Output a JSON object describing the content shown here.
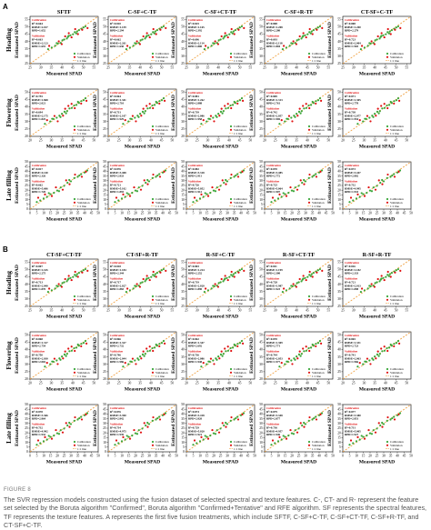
{
  "figure": {
    "panel_a_label": "A",
    "panel_b_label": "B",
    "caption_label": "FIGURE 8",
    "caption_text": "The SVR regression models constructed using the fusion dataset of selected spectral and texture features. C-, CT- and R- represent the feature set selected by the Boruta algorithm \"Confirmed\", Boruta algorithm \"Confirmed+Tentative\" and RFE algorithm. SF represents the spectral features, TF represents the texture features. A represents the first five fusion treatments, which include SFTF, C-SF+C-TF, C-SF+CT-TF, C-SF+R-TF, and CT-SF+C-TF."
  },
  "panels": {
    "A": {
      "columns": [
        "SFTF",
        "C-SF+C-TF",
        "C-SF+CT-TF",
        "C-SF+R-TF",
        "CT-SF+C-TF"
      ],
      "rows": [
        "Heading",
        "Flowering",
        "Late filling"
      ]
    },
    "B": {
      "columns": [
        "CT-SF+CT-TF",
        "CT-SF+R-TF",
        "R-SF+C-TF",
        "R-SF+CT-TF",
        "R-SF+R-TF"
      ],
      "rows": [
        "Heading",
        "Flowering",
        "Late filling"
      ]
    }
  },
  "axis_text": {
    "xlabel": "Measured SPAD",
    "ylabel": "Estimated SPAD",
    "calibration_header": "Calibration",
    "validation_header": "Validation",
    "legend": [
      "Calibration",
      "Validation",
      "1:1 line"
    ]
  },
  "chart_data": {
    "type": "scatter",
    "xlabel": "Measured SPAD",
    "ylabel": "Estimated SPAD",
    "legend_placement": "bottom-right",
    "series_colors": {
      "calibration": "#3aa63a",
      "validation": "#e01010",
      "one_to_one": "#f0a040"
    },
    "rows": {
      "Heading": {
        "xticks": [
          25,
          30,
          35,
          40,
          45,
          50,
          55
        ],
        "xlim": [
          25,
          57
        ],
        "yticks": [
          25,
          30,
          35,
          40,
          45,
          50,
          55
        ],
        "ylim": [
          25,
          57
        ]
      },
      "Flowering": {
        "xticks": [
          20,
          25,
          30,
          35,
          40,
          45,
          50
        ],
        "xlim": [
          20,
          52
        ],
        "yticks": [
          20,
          25,
          30,
          35,
          40,
          45,
          50
        ],
        "ylim": [
          20,
          52
        ]
      },
      "Late filling": {
        "xticks": [
          0,
          5,
          10,
          15,
          20,
          25,
          30,
          35,
          40,
          45,
          50
        ],
        "xlim": [
          0,
          50
        ],
        "yticks": [
          0,
          5,
          10,
          15,
          20,
          25,
          30,
          35,
          40,
          45,
          50
        ],
        "ylim": [
          0,
          50
        ]
      }
    },
    "metrics": {
      "A": [
        [
          {
            "cal": [
              "R²=0.664",
              "RMSE=2.017",
              "RPD=1.652"
            ],
            "val": [
              "R²=0.663",
              "RMSE=2.123",
              "RPD=1.691"
            ]
          },
          {
            "cal": [
              "R²=0.810",
              "RMSE=1.159",
              "RPD=2.294"
            ],
            "val": [
              "R²=0.662",
              "RMSE=2.261",
              "RPD=1.630"
            ]
          },
          {
            "cal": [
              "R²=0.825",
              "RMSE=1.165",
              "RPD=2.392"
            ],
            "val": [
              "R²=0.696",
              "RMSE=2.114",
              "RPD=1.800"
            ]
          },
          {
            "cal": [
              "R²=0.808",
              "RMSE=1.208",
              "RPD=2.280"
            ],
            "val": [
              "R²=0.693",
              "RMSE=2.118",
              "RPD=1.804"
            ]
          },
          {
            "cal": [
              "R²=0.808",
              "RMSE=1.200",
              "RPD=2.279"
            ],
            "val": [
              "R²=0.723",
              "RMSE=2.004",
              "RPD=1.903"
            ]
          }
        ],
        [
          {
            "cal": [
              "R²=0.755",
              "RMSE=1.868",
              "RPD=2.021"
            ],
            "val": [
              "R²=0.694",
              "RMSE=2.175",
              "RPD=1.825"
            ]
          },
          {
            "cal": [
              "R²=0.864",
              "RMSE=1.341",
              "RPD=2.710"
            ],
            "val": [
              "R²=0.731",
              "RMSE=2.107",
              "RPD=1.929"
            ]
          },
          {
            "cal": [
              "R²=0.881",
              "RMSE=1.262",
              "RPD=2.888"
            ],
            "val": [
              "R²=0.739",
              "RMSE=2.086",
              "RPD=1.958"
            ]
          },
          {
            "cal": [
              "R²=0.869",
              "RMSE=1.313",
              "RPD=2.761"
            ],
            "val": [
              "R²=0.742",
              "RMSE=2.057",
              "RPD=1.969"
            ]
          },
          {
            "cal": [
              "R²=0.871",
              "RMSE=1.305",
              "RPD=2.778"
            ],
            "val": [
              "R²=0.738",
              "RMSE=2.077",
              "RPD=1.954"
            ]
          }
        ],
        [
          {
            "cal": [
              "R²=0.817",
              "RMSE=4.140",
              "RPD=2.326"
            ],
            "val": [
              "R²=0.662",
              "RMSE=5.606",
              "RPD=1.720"
            ]
          },
          {
            "cal": [
              "R²=0.876",
              "RMSE=3.408",
              "RPD=2.833"
            ],
            "val": [
              "R²=0.721",
              "RMSE=5.102",
              "RPD=1.893"
            ]
          },
          {
            "cal": [
              "R²=0.882",
              "RMSE=3.318",
              "RPD=2.911"
            ],
            "val": [
              "R²=0.726",
              "RMSE=5.052",
              "RPD=1.912"
            ]
          },
          {
            "cal": [
              "R²=0.870",
              "RMSE=3.485",
              "RPD=2.772"
            ],
            "val": [
              "R²=0.725",
              "RMSE=5.064",
              "RPD=1.907"
            ]
          },
          {
            "cal": [
              "R²=0.873",
              "RMSE=3.447",
              "RPD=2.802"
            ],
            "val": [
              "R²=0.732",
              "RMSE=4.995",
              "RPD=1.933"
            ]
          }
        ]
      ],
      "B": [
        [
          {
            "cal": [
              "R²=0.807",
              "RMSE=1.165",
              "RPD=2.275"
            ],
            "val": [
              "R²=0.713",
              "RMSE=2.040",
              "RPD=1.870"
            ]
          },
          {
            "cal": [
              "R²=0.818",
              "RMSE=1.184",
              "RPD=2.344"
            ],
            "val": [
              "R²=0.717",
              "RMSE=2.027",
              "RPD=1.883"
            ]
          },
          {
            "cal": [
              "R²=0.803",
              "RMSE=1.224",
              "RPD=2.252"
            ],
            "val": [
              "R²=0.719",
              "RMSE=2.020",
              "RPD=1.890"
            ]
          },
          {
            "cal": [
              "R²=0.811",
              "RMSE=1.199",
              "RPD=2.300"
            ],
            "val": [
              "R²=0.728",
              "RMSE=1.987",
              "RPD=1.923"
            ]
          },
          {
            "cal": [
              "R²=0.816",
              "RMSE=1.182",
              "RPD=2.333"
            ],
            "val": [
              "R²=0.721",
              "RMSE=2.013",
              "RPD=1.898"
            ]
          }
        ],
        [
          {
            "cal": [
              "R²=0.868",
              "RMSE=1.317",
              "RPD=2.754"
            ],
            "val": [
              "R²=0.750",
              "RMSE=2.030",
              "RPD=2.002"
            ]
          },
          {
            "cal": [
              "R²=0.866",
              "RMSE=1.327",
              "RPD=2.732"
            ],
            "val": [
              "R²=0.746",
              "RMSE=2.044",
              "RPD=1.986"
            ]
          },
          {
            "cal": [
              "R²=0.862",
              "RMSE=1.347",
              "RPD=2.692"
            ],
            "val": [
              "R²=0.736",
              "RMSE=2.086",
              "RPD=1.948"
            ]
          },
          {
            "cal": [
              "R²=0.870",
              "RMSE=1.309",
              "RPD=2.771"
            ],
            "val": [
              "R²=0.744",
              "RMSE=2.053",
              "RPD=1.977"
            ]
          },
          {
            "cal": [
              "R²=0.865",
              "RMSE=1.331",
              "RPD=2.723"
            ],
            "val": [
              "R²=0.741",
              "RMSE=2.063",
              "RPD=1.966"
            ]
          }
        ],
        [
          {
            "cal": [
              "R²=0.878",
              "RMSE=3.366",
              "RPD=2.864"
            ],
            "val": [
              "R²=0.732",
              "RMSE=4.992",
              "RPD=1.932"
            ]
          },
          {
            "cal": [
              "R²=0.876",
              "RMSE=3.390",
              "RPD=2.842"
            ],
            "val": [
              "R²=0.734",
              "RMSE=4.975",
              "RPD=1.939"
            ]
          },
          {
            "cal": [
              "R²=0.874",
              "RMSE=3.418",
              "RPD=2.820"
            ],
            "val": [
              "R²=0.729",
              "RMSE=5.020",
              "RPD=1.921"
            ]
          },
          {
            "cal": [
              "R²=0.879",
              "RMSE=3.348",
              "RPD=2.877"
            ],
            "val": [
              "R²=0.736",
              "RMSE=4.957",
              "RPD=1.946"
            ]
          },
          {
            "cal": [
              "R²=0.877",
              "RMSE=3.380",
              "RPD=2.851"
            ],
            "val": [
              "R²=0.731",
              "RMSE=5.005",
              "RPD=1.927"
            ]
          }
        ]
      ]
    },
    "points": {
      "Heading": {
        "calibration": [
          [
            33.5,
            34.8
          ],
          [
            35.2,
            35.9
          ],
          [
            36.8,
            37.1
          ],
          [
            38.1,
            38.6
          ],
          [
            39.4,
            39.0
          ],
          [
            40.2,
            40.8
          ],
          [
            41.0,
            41.3
          ],
          [
            42.3,
            42.0
          ],
          [
            43.1,
            43.8
          ],
          [
            44.0,
            44.2
          ],
          [
            45.2,
            44.9
          ],
          [
            46.0,
            46.3
          ],
          [
            47.1,
            46.8
          ],
          [
            48.0,
            47.7
          ],
          [
            49.2,
            48.6
          ],
          [
            50.1,
            49.5
          ],
          [
            51.0,
            50.2
          ],
          [
            37.5,
            38.9
          ],
          [
            42.8,
            43.1
          ],
          [
            46.7,
            45.5
          ]
        ],
        "validation": [
          [
            34.0,
            37.0
          ],
          [
            38.5,
            40.1
          ],
          [
            41.5,
            43.5
          ],
          [
            44.5,
            42.8
          ],
          [
            47.5,
            45.0
          ],
          [
            49.5,
            47.9
          ],
          [
            52.0,
            49.1
          ],
          [
            43.2,
            45.6
          ],
          [
            39.9,
            38.2
          ],
          [
            46.2,
            48.4
          ]
        ]
      },
      "Flowering": {
        "calibration": [
          [
            27.0,
            28.5
          ],
          [
            29.5,
            30.1
          ],
          [
            31.0,
            31.8
          ],
          [
            32.5,
            32.6
          ],
          [
            33.8,
            34.0
          ],
          [
            35.0,
            35.3
          ],
          [
            36.2,
            36.7
          ],
          [
            37.4,
            37.1
          ],
          [
            38.5,
            38.9
          ],
          [
            39.6,
            39.2
          ],
          [
            40.7,
            40.9
          ],
          [
            41.8,
            41.3
          ],
          [
            43.0,
            42.6
          ],
          [
            44.1,
            43.9
          ],
          [
            45.2,
            44.5
          ],
          [
            46.0,
            45.8
          ],
          [
            30.4,
            31.9
          ],
          [
            36.9,
            35.6
          ],
          [
            42.5,
            43.4
          ],
          [
            34.3,
            33.1
          ]
        ],
        "validation": [
          [
            28.0,
            31.0
          ],
          [
            31.5,
            33.8
          ],
          [
            35.5,
            34.0
          ],
          [
            38.0,
            40.6
          ],
          [
            41.0,
            39.1
          ],
          [
            44.0,
            42.2
          ],
          [
            46.5,
            44.1
          ],
          [
            33.0,
            30.2
          ],
          [
            39.5,
            42.0
          ],
          [
            36.5,
            38.7
          ]
        ]
      },
      "Late filling": {
        "calibration": [
          [
            5.0,
            7.5
          ],
          [
            7.5,
            9.1
          ],
          [
            10.0,
            11.2
          ],
          [
            12.5,
            13.0
          ],
          [
            15.0,
            15.8
          ],
          [
            17.5,
            17.2
          ],
          [
            20.0,
            19.6
          ],
          [
            22.5,
            22.9
          ],
          [
            25.0,
            24.6
          ],
          [
            27.5,
            27.9
          ],
          [
            30.0,
            29.4
          ],
          [
            32.5,
            32.8
          ],
          [
            35.0,
            34.1
          ],
          [
            37.5,
            37.0
          ],
          [
            40.0,
            38.7
          ],
          [
            42.0,
            40.9
          ],
          [
            13.8,
            16.9
          ],
          [
            21.3,
            19.0
          ],
          [
            28.8,
            30.8
          ],
          [
            36.2,
            35.5
          ]
        ],
        "validation": [
          [
            6.0,
            12.0
          ],
          [
            11.0,
            15.5
          ],
          [
            16.0,
            13.8
          ],
          [
            19.0,
            23.0
          ],
          [
            24.0,
            20.5
          ],
          [
            29.0,
            26.3
          ],
          [
            33.0,
            36.5
          ],
          [
            38.0,
            34.2
          ],
          [
            41.0,
            39.5
          ],
          [
            26.5,
            30.4
          ]
        ]
      }
    }
  }
}
